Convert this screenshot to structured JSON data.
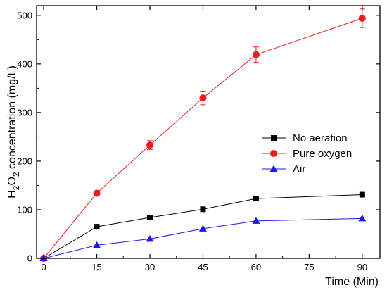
{
  "chart_data": {
    "type": "line",
    "x": [
      0,
      15,
      30,
      45,
      60,
      90
    ],
    "xlim": [
      -2,
      95
    ],
    "ylim": [
      0,
      520
    ],
    "xticks": [
      0,
      15,
      30,
      45,
      60,
      75,
      90
    ],
    "yticks": [
      0,
      100,
      200,
      300,
      400,
      500
    ],
    "xlabel": "Time (Min)",
    "ylabel": {
      "prefix": "H",
      "sub1": "2",
      "mid": "O",
      "sub2": "2",
      "suffix": " concentration (mg/L)"
    },
    "grid": false,
    "legend_position": "right-middle",
    "series": [
      {
        "name": "No aeration",
        "color": "#000000",
        "marker": "square",
        "values": [
          0,
          65,
          84,
          101,
          123,
          131
        ],
        "errors": [
          2,
          3,
          3,
          3,
          3,
          3
        ]
      },
      {
        "name": "Pure oxygen",
        "color": "#ee1c1c",
        "marker": "circle",
        "values": [
          0,
          134,
          233,
          330,
          419,
          494
        ],
        "errors": [
          2,
          4,
          9,
          14,
          16,
          19
        ]
      },
      {
        "name": "Air",
        "color": "#1a1aee",
        "marker": "triangle",
        "values": [
          0,
          27,
          40,
          61,
          77,
          82
        ],
        "errors": [
          2,
          3,
          3,
          4,
          5,
          5
        ]
      }
    ]
  }
}
